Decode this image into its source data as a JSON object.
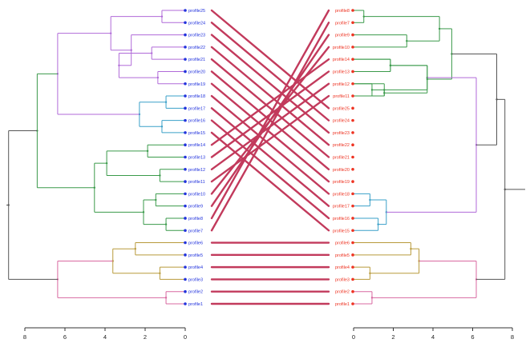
{
  "title": "",
  "label_colors": {
    "left": "#2233dd",
    "right": "#ee3322"
  },
  "line_color": "#c23a5c",
  "left_tree": {
    "labels": [
      "profile25",
      "profile24",
      "profile23",
      "profile22",
      "profile21",
      "profile20",
      "profile19",
      "profile18",
      "profile17",
      "profile16",
      "profile15",
      "profile14",
      "profile13",
      "profile12",
      "profile11",
      "profile10",
      "profile9",
      "profile8",
      "profile7",
      "profile6",
      "profile5",
      "profile4",
      "profile3",
      "profile2",
      "profile1"
    ],
    "axis_ticks": [
      "8",
      "6",
      "4",
      "2",
      "0"
    ],
    "axis_range": [
      0,
      8
    ]
  },
  "right_tree": {
    "labels": [
      "profile8",
      "profile7",
      "profile9",
      "profile10",
      "profile14",
      "profile13",
      "profile12",
      "profile11",
      "profile25",
      "profile24",
      "profile23",
      "profile22",
      "profile21",
      "profile20",
      "profile19",
      "profile18",
      "profile17",
      "profile16",
      "profile15",
      "profile6",
      "profile5",
      "profile4",
      "profile3",
      "profile2",
      "profile1"
    ],
    "axis_ticks": [
      "0",
      "2",
      "4",
      "6",
      "8"
    ],
    "axis_range": [
      0,
      8
    ]
  },
  "cluster_colors": {
    "purple": "#b06ad8",
    "cyan": "#3aa0c8",
    "green": "#3a9a4a",
    "olive": "#b89a3a",
    "pink": "#d868a0",
    "grey": "#555555"
  }
}
